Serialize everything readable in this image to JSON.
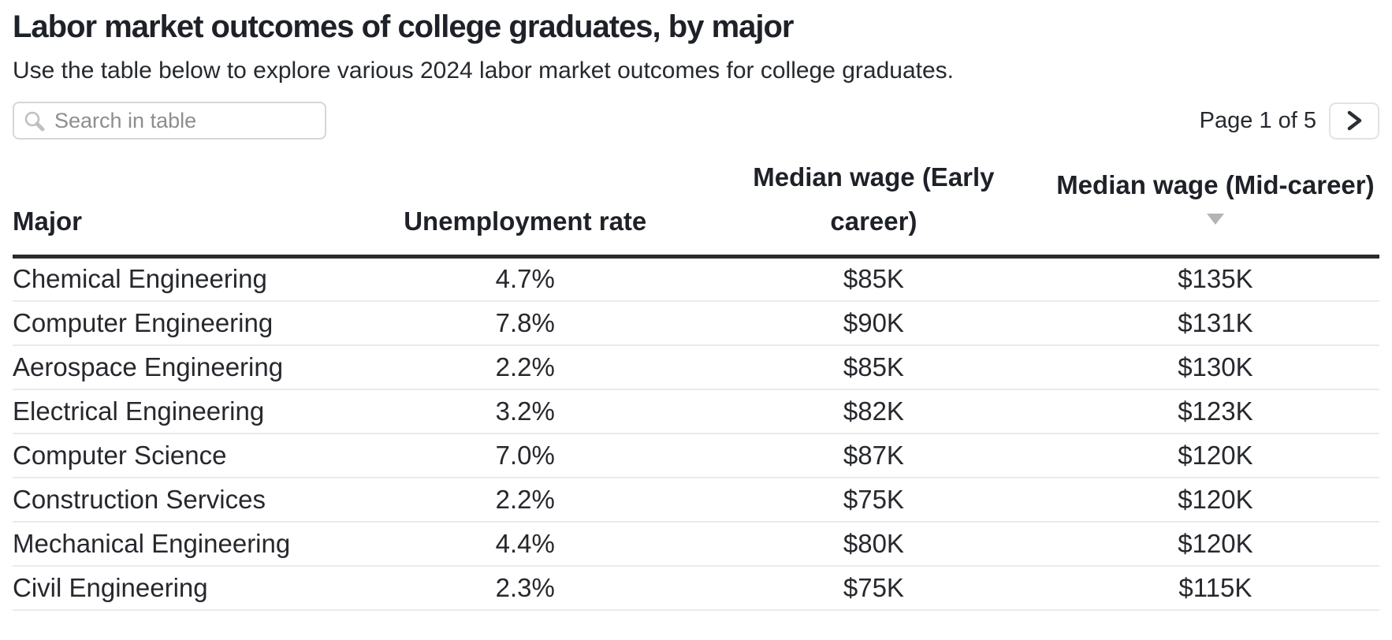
{
  "page": {
    "title": "Labor market outcomes of college graduates, by major",
    "subtitle": "Use the table below to explore various 2024 labor market outcomes for college graduates."
  },
  "controls": {
    "search": {
      "placeholder": "Search in table",
      "value": "",
      "icon": "magnifier-icon"
    },
    "pagination": {
      "label": "Page 1 of 5",
      "current_page": 1,
      "total_pages": 5,
      "next_button_icon": "chevron-right-icon"
    }
  },
  "table": {
    "columns": [
      {
        "id": "major",
        "label": "Major",
        "align": "left",
        "sorted": false
      },
      {
        "id": "unemployment_rate",
        "label": "Unemployment rate",
        "align": "center",
        "sorted": false
      },
      {
        "id": "median_wage_early",
        "label": "Median wage (Early career)",
        "align": "center",
        "sorted": false
      },
      {
        "id": "median_wage_mid",
        "label": "Median wage (Mid-career)",
        "align": "center",
        "sorted": true,
        "sort_direction": "descending",
        "sort_icon": "sort-desc-triangle-icon"
      }
    ],
    "rows": [
      {
        "major": "Chemical Engineering",
        "unemployment_rate": "4.7%",
        "median_wage_early": "$85K",
        "median_wage_mid": "$135K"
      },
      {
        "major": "Computer Engineering",
        "unemployment_rate": "7.8%",
        "median_wage_early": "$90K",
        "median_wage_mid": "$131K"
      },
      {
        "major": "Aerospace Engineering",
        "unemployment_rate": "2.2%",
        "median_wage_early": "$85K",
        "median_wage_mid": "$130K"
      },
      {
        "major": "Electrical Engineering",
        "unemployment_rate": "3.2%",
        "median_wage_early": "$82K",
        "median_wage_mid": "$123K"
      },
      {
        "major": "Computer Science",
        "unemployment_rate": "7.0%",
        "median_wage_early": "$87K",
        "median_wage_mid": "$120K"
      },
      {
        "major": "Construction Services",
        "unemployment_rate": "2.2%",
        "median_wage_early": "$75K",
        "median_wage_mid": "$120K"
      },
      {
        "major": "Mechanical Engineering",
        "unemployment_rate": "4.4%",
        "median_wage_early": "$80K",
        "median_wage_mid": "$120K"
      },
      {
        "major": "Civil Engineering",
        "unemployment_rate": "2.3%",
        "median_wage_early": "$75K",
        "median_wage_mid": "$115K"
      }
    ]
  },
  "colors": {
    "text_primary": "#26282d",
    "title_text": "#1e2127",
    "header_rule": "#2b2b2b",
    "row_divider": "#eaeaea",
    "sort_triangle": "#b4b4b4",
    "search_border": "#d6d6d6",
    "search_icon": "#c0c0c0",
    "placeholder_text": "#8e8e8e",
    "button_border": "#e3e3e3",
    "chevron": "#2b2e33"
  }
}
